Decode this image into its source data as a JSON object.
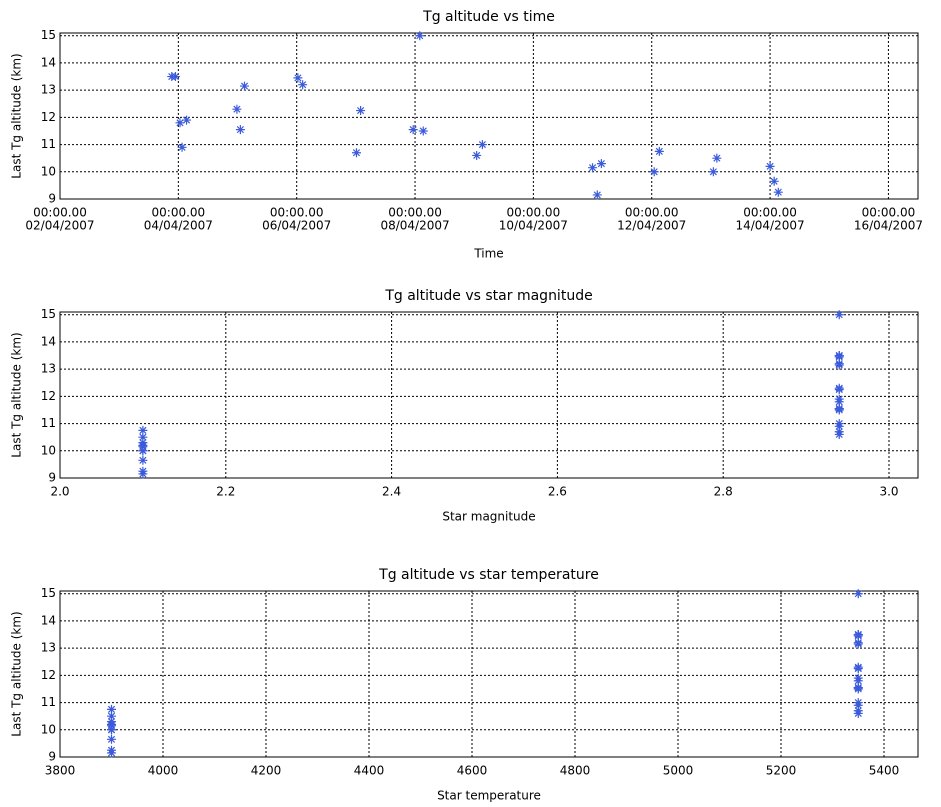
{
  "chart_data": [
    {
      "type": "scatter",
      "title": "Tg altitude vs time",
      "x_label": "Time",
      "y_label": "Last Tg altitude (km)",
      "color": "#3b5bdb",
      "grid": true,
      "x": [
        "2007-04-03T21:20",
        "2007-04-03T22:50",
        "2007-04-04T00:40",
        "2007-04-04T01:30",
        "2007-04-04T03:20",
        "2007-04-04T23:45",
        "2007-04-05T01:10",
        "2007-04-05T02:50",
        "2007-04-06T00:30",
        "2007-04-06T02:25",
        "2007-04-07T00:15",
        "2007-04-07T01:55",
        "2007-04-07T23:15",
        "2007-04-08T01:55",
        "2007-04-08T03:20",
        "2007-04-09T01:00",
        "2007-04-09T03:20",
        "2007-04-11T00:00",
        "2007-04-11T01:55",
        "2007-04-11T03:35",
        "2007-04-12T01:00",
        "2007-04-12T03:05",
        "2007-04-13T01:00",
        "2007-04-13T02:25",
        "2007-04-14T00:00",
        "2007-04-14T01:40",
        "2007-04-14T03:20"
      ],
      "values": [
        13.5,
        13.5,
        11.8,
        10.9,
        11.9,
        12.3,
        11.55,
        13.15,
        13.45,
        13.2,
        10.7,
        12.25,
        11.55,
        15.0,
        11.5,
        10.6,
        11.0,
        10.15,
        9.15,
        10.3,
        10.0,
        10.75,
        10.0,
        10.5,
        10.2,
        9.65,
        9.25
      ],
      "xlim": [
        "2007-04-02T00:00",
        "2007-04-16T12:00"
      ],
      "xticks": [
        {
          "value": "2007-04-02T00:00",
          "label": [
            "00:00.00",
            "02/04/2007"
          ]
        },
        {
          "value": "2007-04-04T00:00",
          "label": [
            "00:00.00",
            "04/04/2007"
          ]
        },
        {
          "value": "2007-04-06T00:00",
          "label": [
            "00:00.00",
            "06/04/2007"
          ]
        },
        {
          "value": "2007-04-08T00:00",
          "label": [
            "00:00.00",
            "08/04/2007"
          ]
        },
        {
          "value": "2007-04-10T00:00",
          "label": [
            "00:00.00",
            "10/04/2007"
          ]
        },
        {
          "value": "2007-04-12T00:00",
          "label": [
            "00:00.00",
            "12/04/2007"
          ]
        },
        {
          "value": "2007-04-14T00:00",
          "label": [
            "00:00.00",
            "14/04/2007"
          ]
        },
        {
          "value": "2007-04-16T00:00",
          "label": [
            "00:00.00",
            "16/04/2007"
          ]
        }
      ],
      "ylim": [
        9,
        15.1
      ],
      "yticks": [
        9,
        10,
        11,
        12,
        13,
        14,
        15
      ]
    },
    {
      "type": "scatter",
      "title": "Tg altitude vs star magnitude",
      "x_label": "Star magnitude",
      "y_label": "Last Tg altitude (km)",
      "color": "#3b5bdb",
      "grid": true,
      "x": [
        2.94,
        2.94,
        2.94,
        2.94,
        2.94,
        2.94,
        2.94,
        2.94,
        2.94,
        2.94,
        2.94,
        2.94,
        2.94,
        2.94,
        2.94,
        2.94,
        2.94,
        2.1,
        2.1,
        2.1,
        2.1,
        2.1,
        2.1,
        2.1,
        2.1,
        2.1,
        2.1
      ],
      "values": [
        13.5,
        13.5,
        11.8,
        10.9,
        11.9,
        12.3,
        11.55,
        13.15,
        13.45,
        13.2,
        10.7,
        12.25,
        11.55,
        15.0,
        11.5,
        10.6,
        11.0,
        10.15,
        9.15,
        10.3,
        10.0,
        10.75,
        10.0,
        10.5,
        10.2,
        9.65,
        9.25
      ],
      "xlim": [
        2.0,
        3.035
      ],
      "xticks": [
        {
          "value": 2.0,
          "label": "2.0"
        },
        2.2,
        2.4,
        2.6,
        2.8,
        {
          "value": 3.0,
          "label": "3.0"
        }
      ],
      "ylim": [
        9,
        15.1
      ],
      "yticks": [
        9,
        10,
        11,
        12,
        13,
        14,
        15
      ]
    },
    {
      "type": "scatter",
      "title": "Tg altitude vs star temperature",
      "x_label": "Star temperature",
      "y_label": "Last Tg altitude (km)",
      "color": "#3b5bdb",
      "grid": true,
      "x": [
        5350,
        5350,
        5350,
        5350,
        5350,
        5350,
        5350,
        5350,
        5350,
        5350,
        5350,
        5350,
        5350,
        5350,
        5350,
        5350,
        5350,
        3900,
        3900,
        3900,
        3900,
        3900,
        3900,
        3900,
        3900,
        3900,
        3900
      ],
      "values": [
        13.5,
        13.5,
        11.8,
        10.9,
        11.9,
        12.3,
        11.55,
        13.15,
        13.45,
        13.2,
        10.7,
        12.25,
        11.55,
        15.0,
        11.5,
        10.6,
        11.0,
        10.15,
        9.15,
        10.3,
        10.0,
        10.75,
        10.0,
        10.5,
        10.2,
        9.65,
        9.25
      ],
      "xlim": [
        3800,
        5466
      ],
      "xticks": [
        3800,
        4000,
        4200,
        4400,
        4600,
        4800,
        5000,
        5200,
        5400
      ],
      "ylim": [
        9,
        15.1
      ],
      "yticks": [
        9,
        10,
        11,
        12,
        13,
        14,
        15
      ]
    }
  ]
}
